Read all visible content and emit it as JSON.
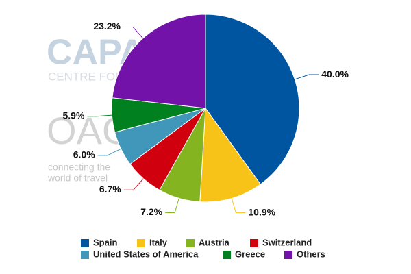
{
  "chart_data": {
    "type": "pie",
    "categories": [
      "Spain",
      "Italy",
      "Austria",
      "Switzerland",
      "United States of America",
      "Greece",
      "Others"
    ],
    "values": [
      40.0,
      10.9,
      7.2,
      6.7,
      6.0,
      5.9,
      23.2
    ],
    "value_labels": [
      "40.0%",
      "10.9%",
      "7.2%",
      "6.7%",
      "6.0%",
      "5.9%",
      "23.2%"
    ],
    "colors": [
      "#0055a0",
      "#f8c318",
      "#84b521",
      "#d0000f",
      "#4197b9",
      "#00801e",
      "#7312a9"
    ],
    "legend": "bottom",
    "watermark": {
      "brand": "CAPA",
      "brand_sub": "CENTRE FOR AVIATION",
      "partner": "OAG",
      "tagline_1": "connecting the",
      "tagline_2": "world of travel"
    }
  }
}
